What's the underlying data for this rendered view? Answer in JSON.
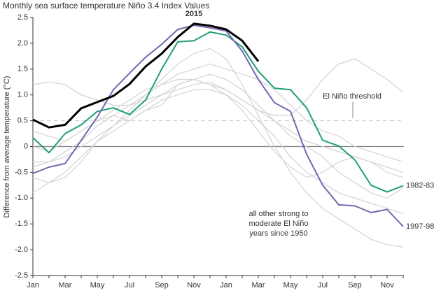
{
  "chart_data": {
    "type": "line",
    "title": "Monthly sea surface temperature Niño 3.4 Index Values",
    "y_label": "Difference from average temperature (°C)",
    "categories": [
      "Jan",
      null,
      "Mar",
      null,
      "May",
      null,
      "Jul",
      null,
      "Sep",
      null,
      "Nov",
      null,
      "Jan",
      null,
      "Mar",
      null,
      "May",
      null,
      "Jul",
      null,
      "Sep",
      null,
      "Nov",
      null
    ],
    "ylim": [
      -2.5,
      2.5
    ],
    "yticks": [
      -2.5,
      {
        "value": -2,
        "label": "-2.0"
      },
      -1.5,
      {
        "value": -1,
        "label": "-1.0"
      },
      -0.5,
      0,
      0.5,
      {
        "value": 1,
        "label": "1.0"
      },
      1.5,
      {
        "value": 2,
        "label": "2.0"
      },
      2.5
    ],
    "threshold": {
      "value": 0.5,
      "label": "El Niño threshold"
    },
    "annotation": [
      "all other strong to",
      "moderate El Niño",
      "years since 1950"
    ],
    "annotation_color": "#c8c8c8",
    "series": [
      {
        "color": "#d3d3d3",
        "values": [
          0.3,
          0.2,
          0.1,
          0.3,
          0.5,
          0.7,
          0.9,
          1.1,
          1.2,
          1.4,
          1.5,
          1.6,
          1.5,
          1.4,
          1.3,
          1.1,
          0.8,
          0.5,
          0.3,
          0.2,
          0.0,
          -0.1,
          -0.2,
          -0.3
        ]
      },
      {
        "color": "#d3d3d3",
        "values": [
          1.2,
          1.25,
          1.2,
          1.0,
          0.9,
          0.8,
          0.8,
          0.9,
          1.0,
          1.1,
          1.2,
          1.25,
          1.1,
          0.9,
          0.7,
          0.6,
          0.6,
          0.9,
          1.3,
          1.6,
          1.7,
          1.5,
          1.3,
          1.05
        ]
      },
      {
        "color": "#d3d3d3",
        "values": [
          -0.6,
          -0.7,
          -0.6,
          -0.3,
          0.1,
          0.4,
          0.7,
          1.0,
          1.3,
          1.6,
          1.8,
          1.9,
          1.7,
          1.2,
          0.6,
          0.0,
          -0.5,
          -0.9,
          -1.2,
          -1.4,
          -1.6,
          -1.8,
          -1.9,
          -1.95
        ]
      },
      {
        "color": "#d3d3d3",
        "values": [
          -0.9,
          -0.7,
          -0.5,
          -0.2,
          0.1,
          0.3,
          0.5,
          0.7,
          0.9,
          1.0,
          1.1,
          1.1,
          1.0,
          0.8,
          0.5,
          0.2,
          -0.2,
          -0.5,
          -0.7,
          -0.9,
          -1.0,
          -1.1,
          -1.2,
          -1.3
        ]
      },
      {
        "color": "#d3d3d3",
        "values": [
          0.0,
          -0.1,
          0.1,
          0.3,
          0.5,
          0.6,
          0.5,
          0.7,
          0.8,
          1.2,
          1.3,
          1.4,
          1.3,
          1.1,
          0.8,
          0.5,
          0.2,
          0.0,
          -0.2,
          -0.5,
          -0.7,
          -0.9,
          -1.0,
          -0.8
        ]
      },
      {
        "color": "#d3d3d3",
        "values": [
          -0.4,
          -0.3,
          -0.2,
          0.0,
          0.2,
          0.4,
          0.6,
          0.8,
          1.0,
          1.2,
          1.3,
          1.2,
          1.0,
          0.7,
          0.3,
          -0.1,
          -0.4,
          -0.6,
          -0.5,
          -0.3,
          -0.2,
          -0.3,
          -0.5,
          -0.6
        ]
      },
      {
        "color": "#d3d3d3",
        "values": [
          -0.3,
          -0.3,
          -0.1,
          0.1,
          0.4,
          0.6,
          0.8,
          1.0,
          1.2,
          1.3,
          1.3,
          1.2,
          1.1,
          0.9,
          0.7,
          0.5,
          0.3,
          0.1,
          0.0,
          -0.1,
          -0.2,
          -0.3,
          -0.4,
          -0.5
        ]
      },
      {
        "name": "1982-83",
        "color": "#1f9e7a",
        "values": [
          0.17,
          -0.12,
          0.25,
          0.42,
          0.68,
          0.75,
          0.62,
          0.9,
          1.5,
          2.03,
          2.05,
          2.22,
          2.16,
          1.93,
          1.46,
          1.13,
          1.1,
          0.75,
          0.12,
          0.01,
          -0.26,
          -0.75,
          -0.88,
          -0.76
        ]
      },
      {
        "name": "1997-98",
        "color": "#7466b0",
        "values": [
          -0.52,
          -0.4,
          -0.33,
          0.12,
          0.57,
          1.1,
          1.42,
          1.73,
          1.98,
          2.27,
          2.35,
          2.3,
          2.24,
          1.85,
          1.3,
          0.85,
          0.68,
          -0.15,
          -0.75,
          -1.13,
          -1.15,
          -1.28,
          -1.22,
          -1.55
        ]
      },
      {
        "name": "2015",
        "color": "#000000",
        "values": [
          0.52,
          0.37,
          0.42,
          0.74,
          0.86,
          0.98,
          1.21,
          1.55,
          1.8,
          2.12,
          2.38,
          2.34,
          2.27,
          2.05,
          1.65,
          null,
          null,
          null,
          null,
          null,
          null,
          null,
          null,
          null
        ]
      }
    ]
  }
}
